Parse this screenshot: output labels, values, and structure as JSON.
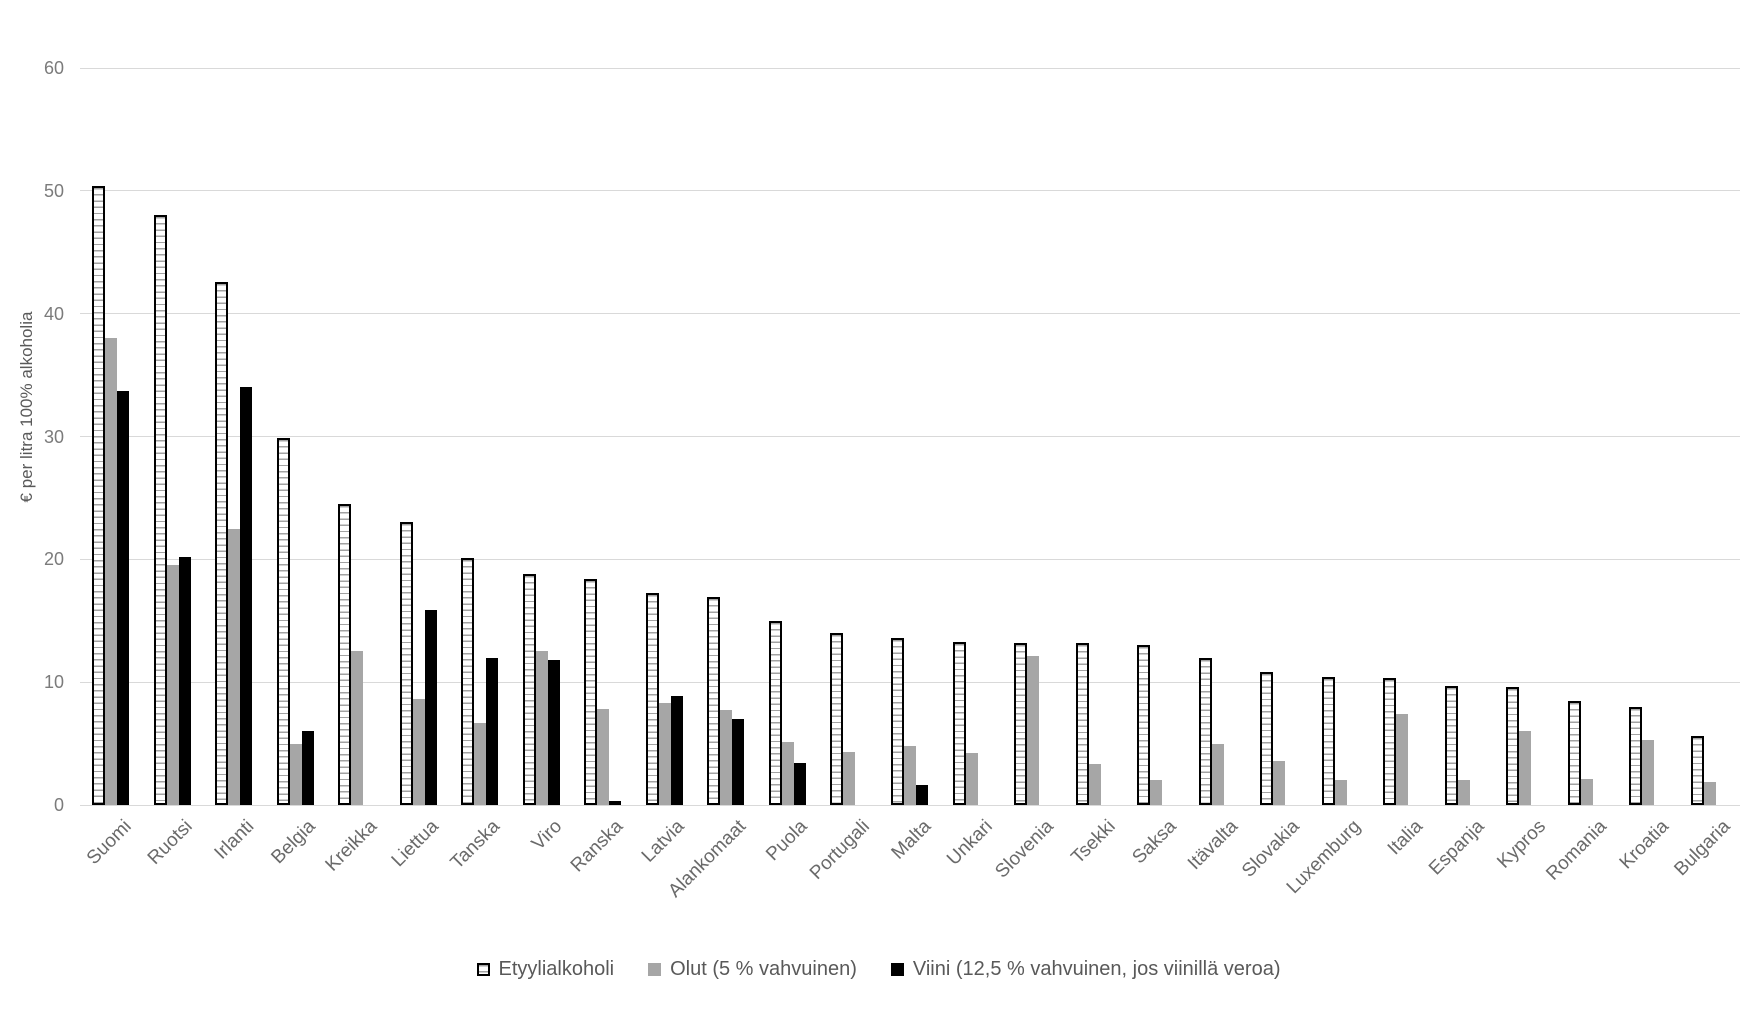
{
  "axis": {
    "y_title": "€ per litra 100% alkoholia",
    "yticks": [
      0,
      10,
      20,
      30,
      40,
      50,
      60
    ]
  },
  "legend": {
    "items": [
      {
        "series": "etyyli",
        "label": "Etyylialkoholi"
      },
      {
        "series": "olut",
        "label": "Olut (5 % vahvuinen)"
      },
      {
        "series": "viini",
        "label": "Viini (12,5 % vahvuinen, jos viinillä veroa)"
      }
    ]
  },
  "colors": {
    "background": "#ffffff",
    "gridline": "#d9d9d9",
    "tick_text": "#7b7b7b",
    "label_text": "#6a6a6a",
    "etyyli_border": "#000000",
    "etyyli_stripe": "#a3a3a3",
    "etyyli_fill": "#ffffff",
    "olut_fill": "#a6a6a6",
    "viini_fill": "#000000"
  },
  "chart_data": {
    "type": "bar",
    "title": "",
    "xlabel": "",
    "ylabel": "€ per litra 100% alkoholia",
    "ylim": [
      0,
      60
    ],
    "ytick_step": 10,
    "grid": true,
    "legend_position": "bottom",
    "categories": [
      "Suomi",
      "Ruotsi",
      "Irlanti",
      "Belgia",
      "Kreikka",
      "Liettua",
      "Tanska",
      "Viro",
      "Ranska",
      "Latvia",
      "Alankomaat",
      "Puola",
      "Portugali",
      "Malta",
      "Unkari",
      "Slovenia",
      "Tsekki",
      "Saksa",
      "Itävalta",
      "Slovakia",
      "Luxemburg",
      "Italia",
      "Espanja",
      "Kypros",
      "Romania",
      "Kroatia",
      "Bulgaria"
    ],
    "series": [
      {
        "name": "Etyylialkoholi",
        "key": "etyyli",
        "values": [
          50.4,
          48.0,
          42.6,
          29.9,
          24.5,
          23.0,
          20.1,
          18.8,
          18.4,
          17.3,
          16.9,
          15.0,
          14.0,
          13.6,
          13.3,
          13.2,
          13.2,
          13.0,
          12.0,
          10.8,
          10.4,
          10.3,
          9.7,
          9.6,
          8.5,
          8.0,
          5.6
        ]
      },
      {
        "name": "Olut (5 % vahvuinen)",
        "key": "olut",
        "values": [
          38.0,
          19.5,
          22.5,
          5.0,
          12.5,
          8.6,
          6.7,
          12.5,
          7.8,
          8.3,
          7.7,
          5.1,
          4.3,
          4.8,
          4.2,
          12.1,
          3.3,
          2.0,
          5.0,
          3.6,
          2.0,
          7.4,
          2.0,
          6.0,
          2.1,
          5.3,
          1.9
        ]
      },
      {
        "name": "Viini (12,5 % vahvuinen, jos viinillä veroa)",
        "key": "viini",
        "values": [
          33.7,
          20.2,
          34.0,
          6.0,
          0,
          15.9,
          12.0,
          11.8,
          0.3,
          8.9,
          7.0,
          3.4,
          0,
          1.6,
          0,
          0,
          0,
          0,
          0,
          0,
          0,
          0,
          0,
          0,
          0,
          0,
          0
        ]
      }
    ]
  }
}
